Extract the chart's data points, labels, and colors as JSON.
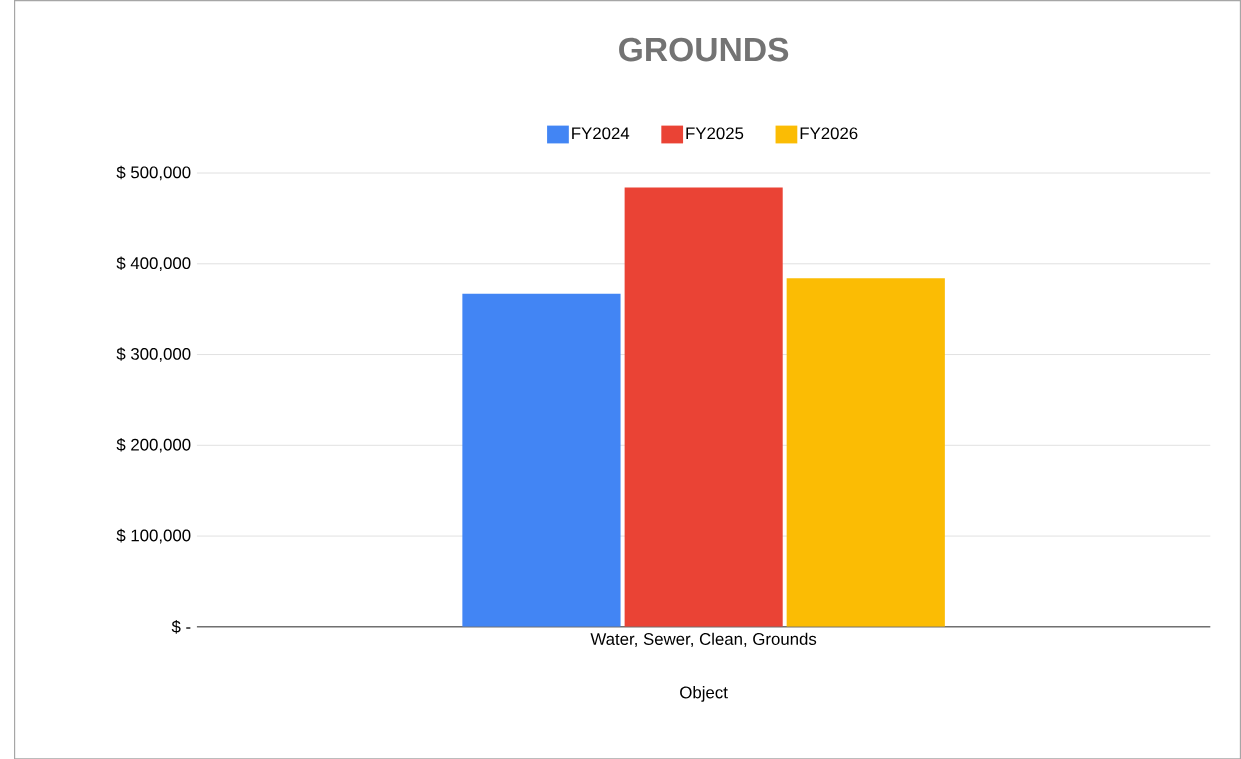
{
  "chart_data": {
    "type": "bar",
    "title": "GROUNDS",
    "xlabel": "Object",
    "categories": [
      "Water, Sewer, Clean, Grounds"
    ],
    "series": [
      {
        "name": "FY2024",
        "color": "#4285f4",
        "values": [
          367000
        ]
      },
      {
        "name": "FY2025",
        "color": "#ea4335",
        "values": [
          484000
        ]
      },
      {
        "name": "FY2026",
        "color": "#fbbc04",
        "values": [
          384000
        ]
      }
    ],
    "ylim": [
      0,
      500000
    ],
    "yticks": [
      {
        "value": 0,
        "label": "$ -"
      },
      {
        "value": 100000,
        "label": "$ 100,000"
      },
      {
        "value": 200000,
        "label": "$ 200,000"
      },
      {
        "value": 300000,
        "label": "$ 300,000"
      },
      {
        "value": 400000,
        "label": "$ 400,000"
      },
      {
        "value": 500000,
        "label": "$ 500,000"
      }
    ],
    "grid": "y",
    "legend": "top"
  }
}
